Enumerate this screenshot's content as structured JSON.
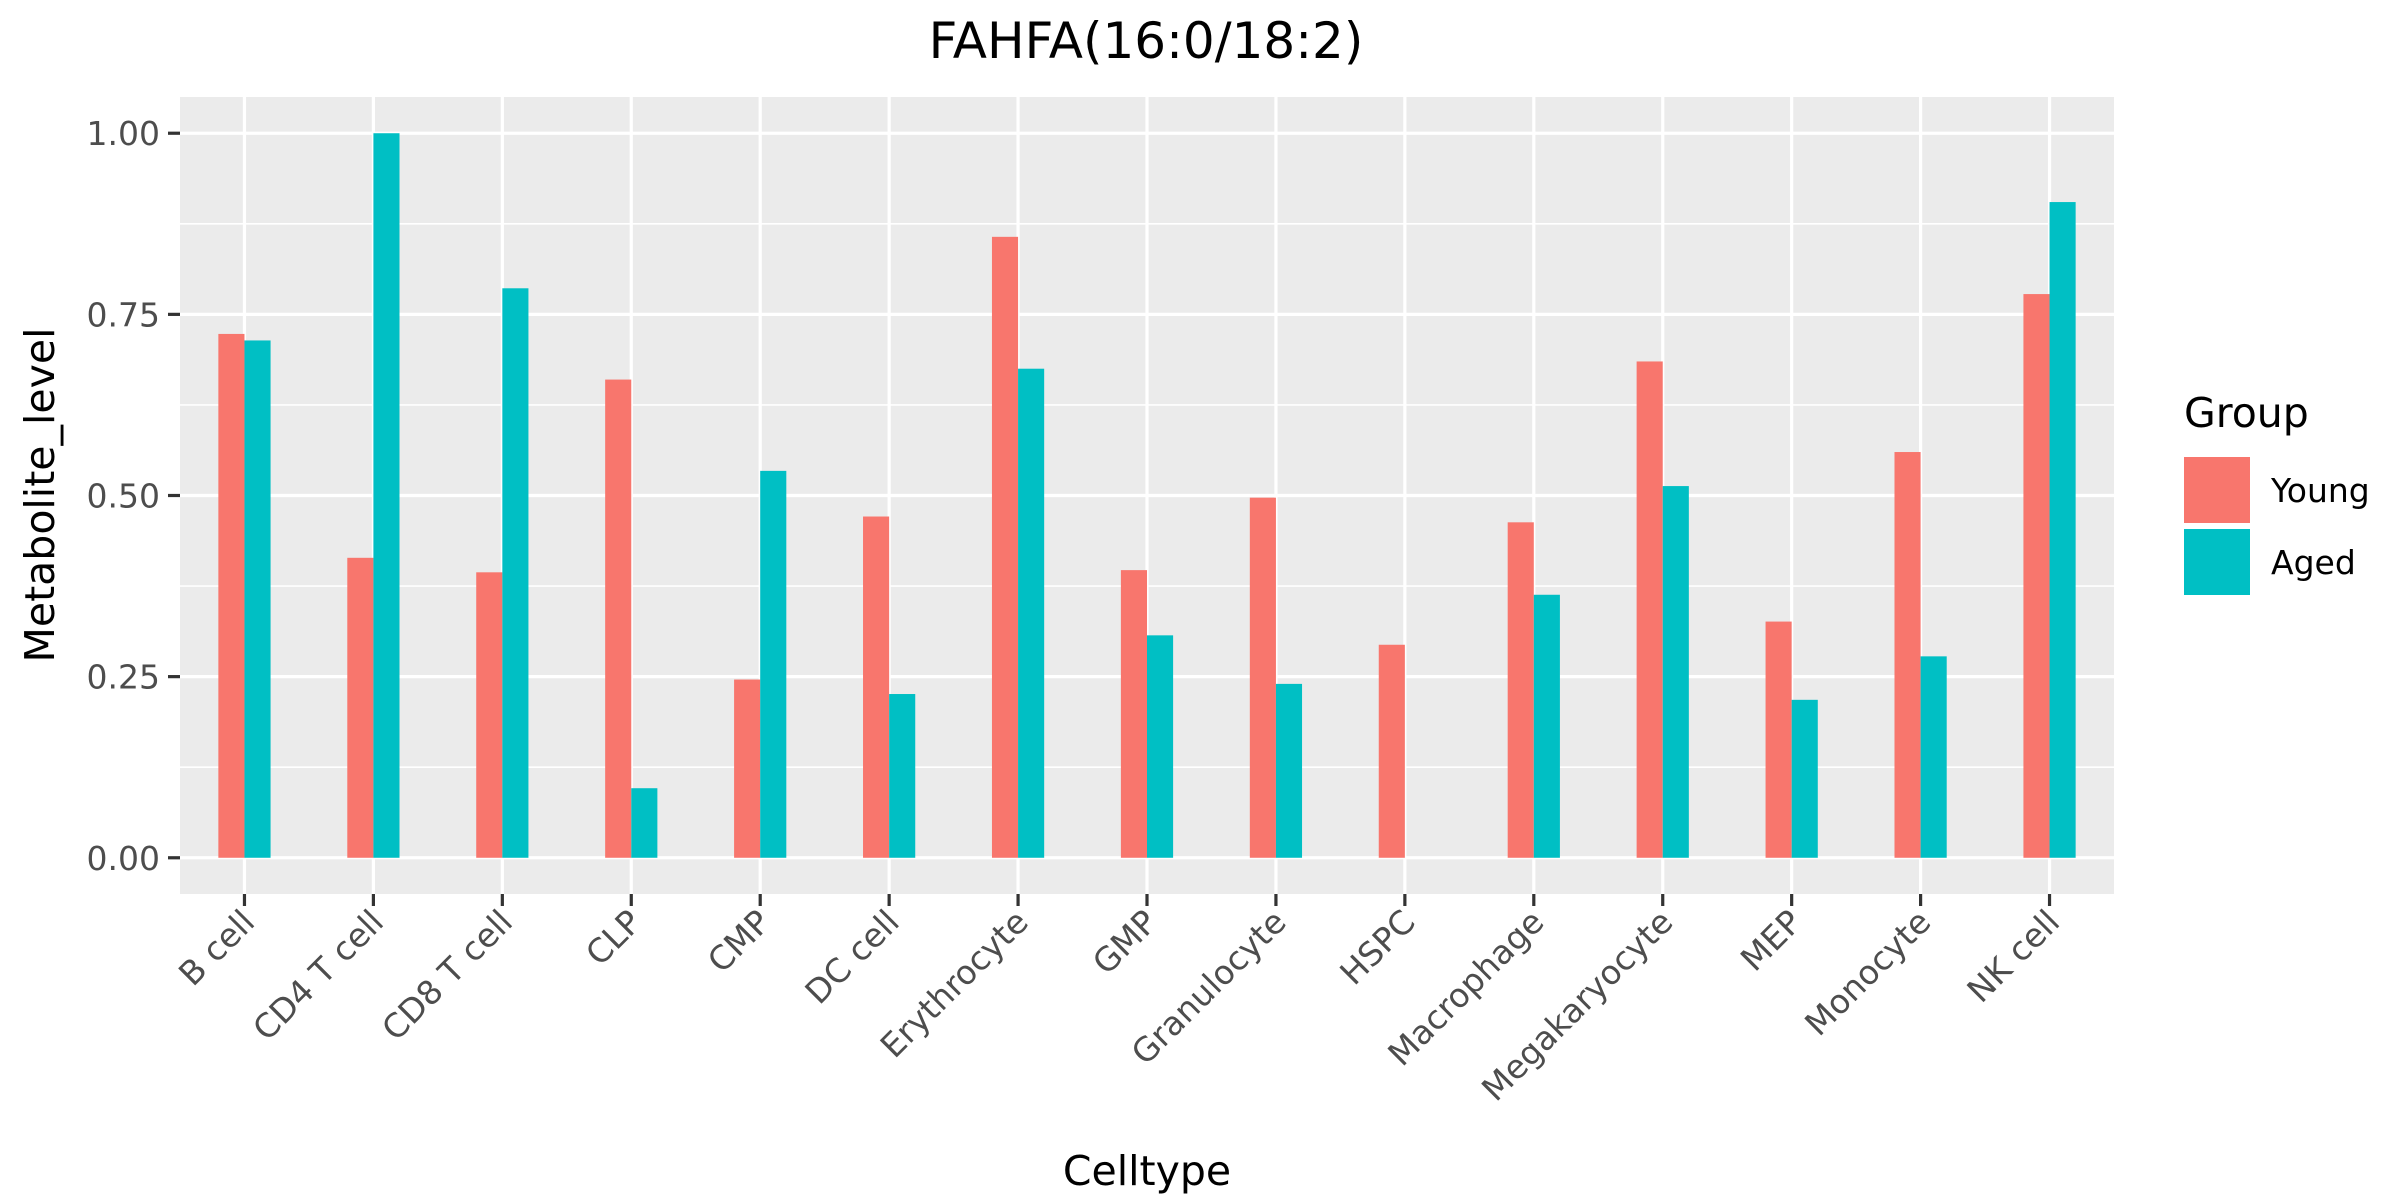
{
  "chart_data": {
    "type": "bar",
    "title": "FAHFA(16:0/18:2)",
    "xlabel": "Celltype",
    "ylabel": "Metabolite_level",
    "ylim": [
      -0.05,
      1.05
    ],
    "yticks": [
      0.0,
      0.25,
      0.5,
      0.75,
      1.0
    ],
    "ytick_labels": [
      "0.00",
      "0.25",
      "0.50",
      "0.75",
      "1.00"
    ],
    "grid": true,
    "legend_position": "right",
    "legend_title": "Group",
    "categories": [
      "B cell",
      "CD4 T cell",
      "CD8 T cell",
      "CLP",
      "CMP",
      "DC cell",
      "Erythrocyte",
      "GMP",
      "Granulocyte",
      "HSPC",
      "Macrophage",
      "Megakaryocyte",
      "MEP",
      "Monocyte",
      "NK cell"
    ],
    "series": [
      {
        "name": "Young",
        "color": "#F8766D",
        "values": [
          0.723,
          0.414,
          0.394,
          0.66,
          0.246,
          0.471,
          0.857,
          0.397,
          0.497,
          0.294,
          0.463,
          0.685,
          0.326,
          0.56,
          0.778
        ]
      },
      {
        "name": "Aged",
        "color": "#00BFC4",
        "values": [
          0.714,
          1.0,
          0.786,
          0.096,
          0.534,
          0.226,
          0.675,
          0.307,
          0.24,
          0.0,
          0.363,
          0.513,
          0.218,
          0.278,
          0.905
        ]
      }
    ],
    "colors": {
      "panel": "#EBEBEB",
      "grid": "#FFFFFF",
      "tick_text": "#4D4D4D",
      "tick_mark": "#333333",
      "text": "#000000"
    }
  }
}
